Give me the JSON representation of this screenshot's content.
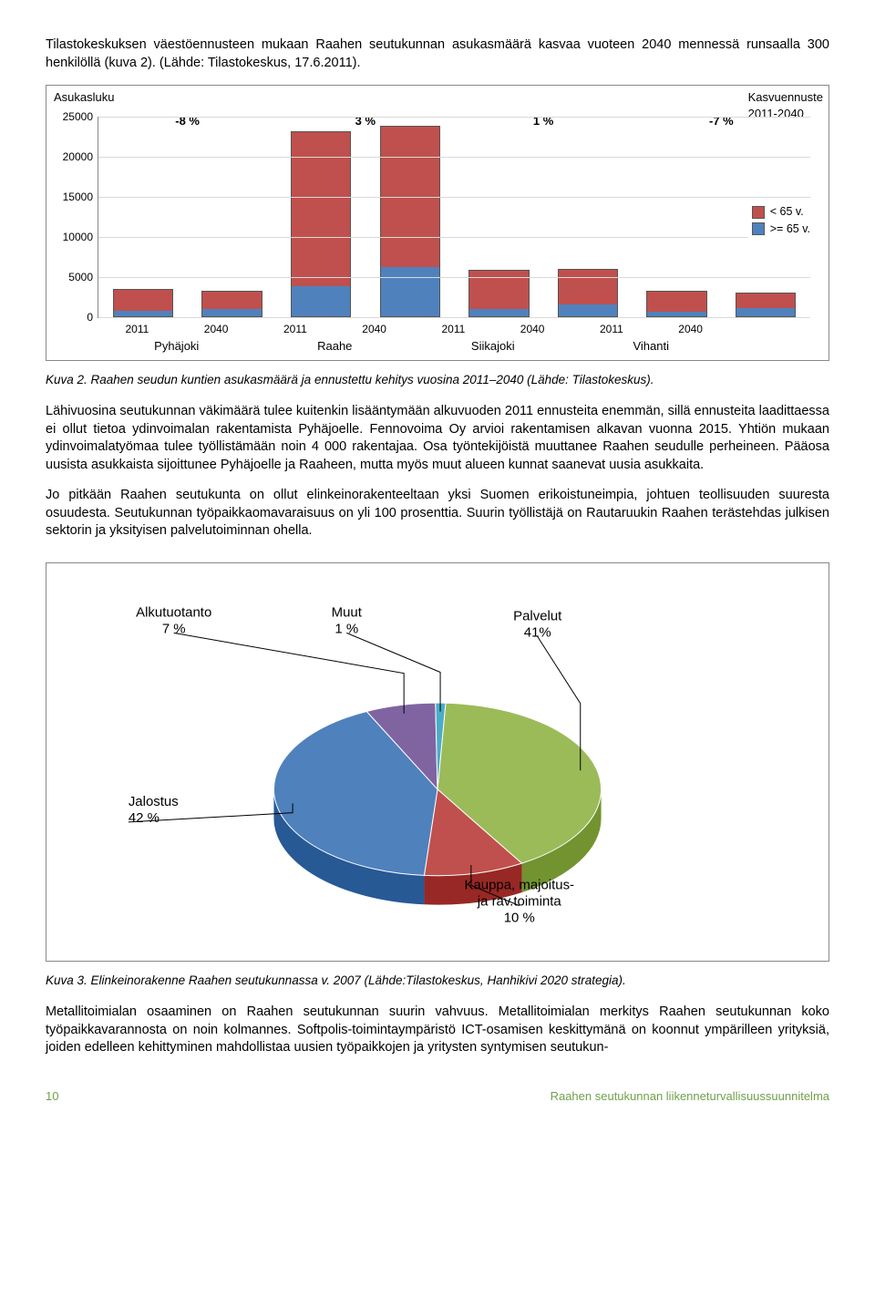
{
  "intro": "Tilastokeskuksen väestöennusteen mukaan Raahen seutukunnan asukasmäärä kasvaa vuoteen 2040 mennessä runsaalla 300 henkilöllä (kuva 2). (Lähde: Tilastokeskus, 17.6.2011).",
  "bar_chart": {
    "y_label": "Asukasluku",
    "right_label": "Kasvuennuste\n2011-2040",
    "y_max": 25000,
    "y_ticks": [
      0,
      5000,
      10000,
      15000,
      20000,
      25000
    ],
    "grid_color": "#d9d9d9",
    "border_color": "#888888",
    "percents": [
      "-8 %",
      "3 %",
      "1 %",
      "-7 %"
    ],
    "groups": [
      "Pyhäjoki",
      "Raahe",
      "Siikajoki",
      "Vihanti"
    ],
    "series": [
      {
        "name": "< 65 v.",
        "color": "#c0504d"
      },
      {
        "name": ">= 65 v.",
        "color": "#4f81bd"
      }
    ],
    "bars": [
      {
        "year": "2011",
        "lt65": 2700,
        "ge65": 650
      },
      {
        "year": "2040",
        "lt65": 2150,
        "ge65": 950
      },
      {
        "year": "2011",
        "lt65": 19200,
        "ge65": 3800
      },
      {
        "year": "2040",
        "lt65": 17400,
        "ge65": 6200
      },
      {
        "year": "2011",
        "lt65": 4800,
        "ge65": 900
      },
      {
        "year": "2040",
        "lt65": 4300,
        "ge65": 1500
      },
      {
        "year": "2011",
        "lt65": 2500,
        "ge65": 600
      },
      {
        "year": "2040",
        "lt65": 1900,
        "ge65": 1000
      }
    ]
  },
  "caption1": "Kuva 2. Raahen seudun kuntien asukasmäärä ja ennustettu kehitys vuosina 2011–2040 (Lähde: Tilastokeskus).",
  "para2": "Lähivuosina seutukunnan väkimäärä tulee kuitenkin lisääntymään alkuvuoden 2011 ennusteita enemmän, sillä ennusteita laadittaessa ei ollut tietoa ydinvoimalan rakentamista Pyhäjoelle. Fennovoima Oy arvioi rakentamisen alkavan vuonna 2015. Yhtiön mukaan ydinvoimalatyömaa tulee työllistämään noin 4 000 rakentajaa. Osa työntekijöistä muuttanee Raahen seudulle perheineen. Pääosa uusista asukkaista sijoittunee Pyhäjoelle ja Raaheen, mutta myös muut alueen kunnat saanevat uusia asukkaita.",
  "para3": "Jo pitkään Raahen seutukunta on ollut elinkeinorakenteeltaan yksi Suomen erikoistuneimpia, johtuen teollisuuden suuresta osuudesta. Seutukunnan työpaikkaomavaraisuus on yli 100 prosenttia. Suurin työllistäjä on Rautaruukin Raahen terästehdas julkisen sektorin ja yksityisen palvelutoiminnan ohella.",
  "pie": {
    "slices": [
      {
        "label": "Palvelut",
        "sub": "41%",
        "value": 41,
        "color": "#9bbb59"
      },
      {
        "label": "Kauppa, majoitus-\nja rav.toiminta",
        "sub": "10 %",
        "value": 10,
        "color": "#c0504d"
      },
      {
        "label": "Jalostus",
        "sub": "42 %",
        "value": 42,
        "color": "#4f81bd"
      },
      {
        "label": "Alkutuotanto",
        "sub": "7 %",
        "value": 7,
        "color": "#8064a2"
      },
      {
        "label": "Muut",
        "sub": "1 %",
        "value": 1,
        "color": "#4bacc6"
      }
    ]
  },
  "caption2": "Kuva 3. Elinkeinorakenne Raahen seutukunnassa v. 2007 (Lähde:Tilastokeskus, Hanhikivi 2020 strategia).",
  "para4": "Metallitoimialan osaaminen on Raahen seutukunnan suurin vahvuus. Metallitoimialan merkitys Raahen seutukunnan koko työpaikkavarannosta on noin kolmannes. Softpolis-toimintaympäristö ICT-osamisen keskittymänä on koonnut ympärilleen yrityksiä, joiden edelleen kehittyminen mahdollistaa uusien työpaikkojen ja yritysten syntymisen seutukun-",
  "footer": {
    "page": "10",
    "title": "Raahen seutukunnan liikenneturvallisuussuunnitelma"
  }
}
